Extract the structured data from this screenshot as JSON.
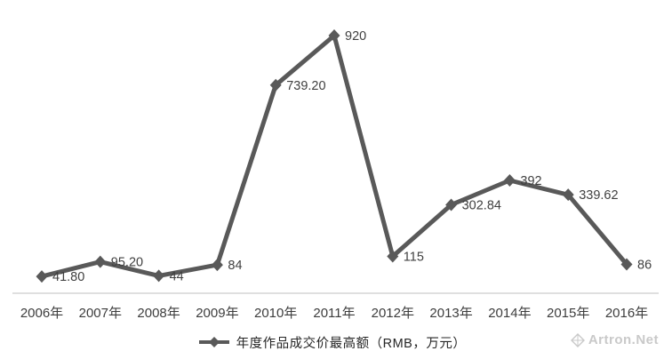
{
  "chart_data": {
    "type": "line",
    "categories": [
      "2006年",
      "2007年",
      "2008年",
      "2009年",
      "2010年",
      "2011年",
      "2012年",
      "2013年",
      "2014年",
      "2015年",
      "2016年"
    ],
    "series": [
      {
        "name": "年度作品成交价最高额（RMB，万元）",
        "values": [
          41.8,
          95.2,
          44,
          84,
          739.2,
          920,
          115,
          302.84,
          392,
          339.62,
          86
        ]
      }
    ],
    "data_labels": [
      "41.80",
      "95.20",
      "44",
      "84",
      "739.20",
      "920",
      "115",
      "302.84",
      "392",
      "339.62",
      "86"
    ],
    "title": "",
    "xlabel": "",
    "ylabel": "",
    "ylim": [
      0,
      1000
    ],
    "grid": false,
    "legend_position": "bottom",
    "line_color": "#595959",
    "marker": "diamond",
    "axis_line_color": "#bfbfbf",
    "label_color": "#404040"
  },
  "legend": {
    "label": "年度作品成交价最高额（RMB，万元）"
  },
  "watermark": {
    "text": "Artron.Net"
  }
}
